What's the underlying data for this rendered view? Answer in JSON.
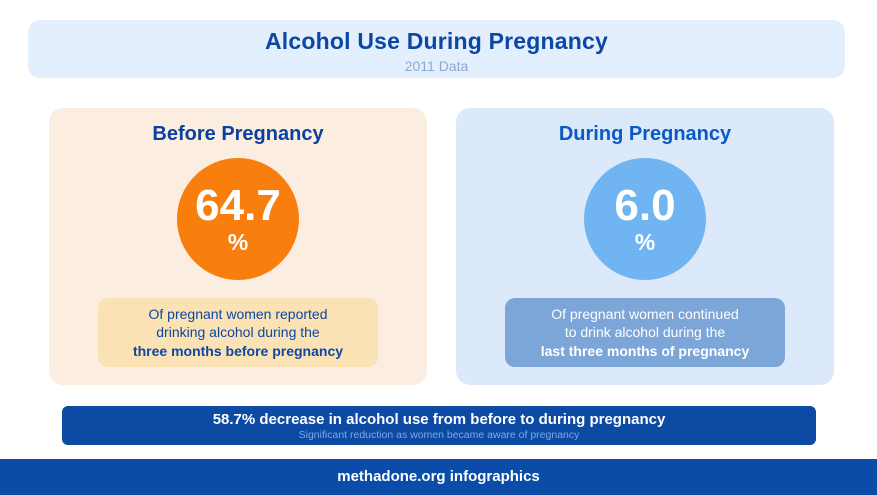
{
  "header": {
    "title": "Alcohol Use During Pregnancy",
    "subtitle": "2011 Data",
    "background": "#E3EFFD",
    "title_color": "#0C47A4",
    "subtitle_color": "#8CA8D3"
  },
  "cards": {
    "before": {
      "heading": "Before Pregnancy",
      "value": "64.7",
      "unit": "%",
      "caption_lines": [
        "Of pregnant women reported",
        "drinking alcohol during the",
        "three months before pregnancy"
      ],
      "card_color": "#FBEDE0",
      "heading_color": "#0A41A0",
      "circle_color": "#F87E0E",
      "caption_bg_color": "#FBE2B5",
      "caption_text_color": "#0D47A1"
    },
    "during": {
      "heading": "During Pregnancy",
      "value": "6.0",
      "unit": "%",
      "caption_lines": [
        "Of pregnant women continued",
        "to drink alcohol during the",
        "last three months of pregnancy"
      ],
      "card_color": "#DBE9FA",
      "heading_color": "#0B5AC4",
      "circle_color": "#70B4F2",
      "caption_bg_color": "#7CA5D8",
      "caption_text_color": "#FFFFFF"
    }
  },
  "banner": {
    "headline": "58.7% decrease in alcohol use from before to during pregnancy",
    "subtext": "Significant reduction as women became aware of pregnancy",
    "background": "#0C4AA3",
    "headline_color": "#FFFFFF",
    "subtext_color": "#79ABE6"
  },
  "footer": {
    "text": "methadone.org infographics",
    "background": "#0C4CA9",
    "text_color": "#FFFFFF"
  },
  "chart_data": {
    "type": "bar",
    "title": "Alcohol Use During Pregnancy",
    "subtitle": "2011 Data",
    "categories": [
      "Before Pregnancy",
      "During Pregnancy"
    ],
    "values": [
      64.7,
      6.0
    ],
    "unit": "%",
    "ylim": [
      0,
      100
    ],
    "annotations": [
      "58.7% decrease in alcohol use from before to during pregnancy",
      "Significant reduction as women became aware of pregnancy"
    ],
    "source": "methadone.org infographics"
  }
}
